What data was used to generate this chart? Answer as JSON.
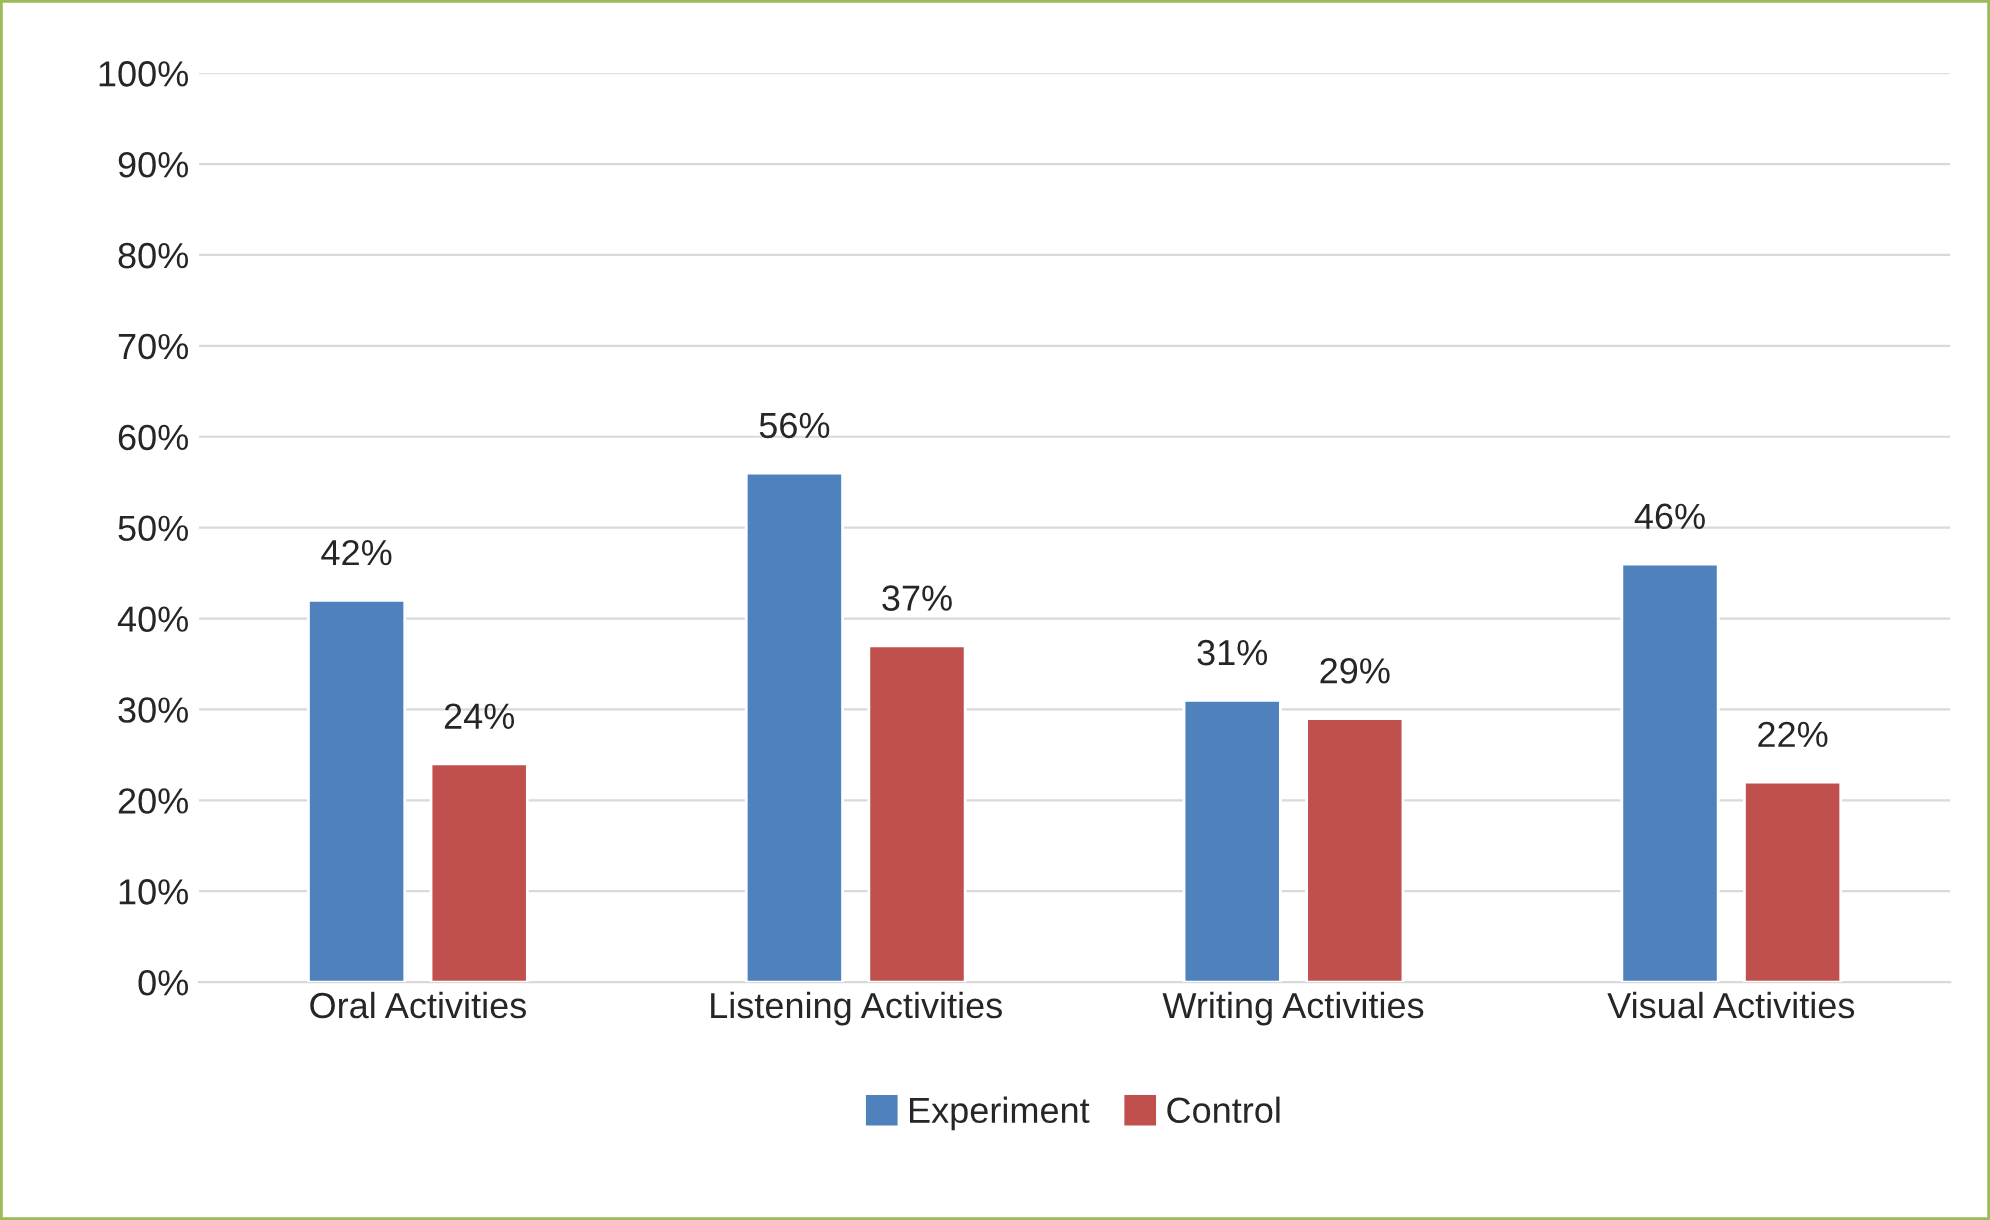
{
  "chart_data": {
    "type": "bar",
    "categories": [
      "Oral Activities",
      "Listening Activities",
      "Writing Activities",
      "Visual Activities"
    ],
    "series": [
      {
        "name": "Experiment",
        "color": "#4f81bd",
        "values": [
          42,
          56,
          31,
          46
        ],
        "value_labels": [
          "42%",
          "56%",
          "31%",
          "46%"
        ]
      },
      {
        "name": "Control",
        "color": "#c0504d",
        "values": [
          24,
          37,
          29,
          22
        ],
        "value_labels": [
          "24%",
          "37%",
          "29%",
          "22%"
        ]
      }
    ],
    "ylim": [
      0,
      100
    ],
    "yticks": [
      {
        "value": 0,
        "label": "0%"
      },
      {
        "value": 10,
        "label": "10%"
      },
      {
        "value": 20,
        "label": "20%"
      },
      {
        "value": 30,
        "label": "30%"
      },
      {
        "value": 40,
        "label": "40%"
      },
      {
        "value": 50,
        "label": "50%"
      },
      {
        "value": 60,
        "label": "60%"
      },
      {
        "value": 70,
        "label": "70%"
      },
      {
        "value": 80,
        "label": "80%"
      },
      {
        "value": 90,
        "label": "90%"
      },
      {
        "value": 100,
        "label": "100%"
      }
    ],
    "grid": "y",
    "legend": "bottom"
  }
}
